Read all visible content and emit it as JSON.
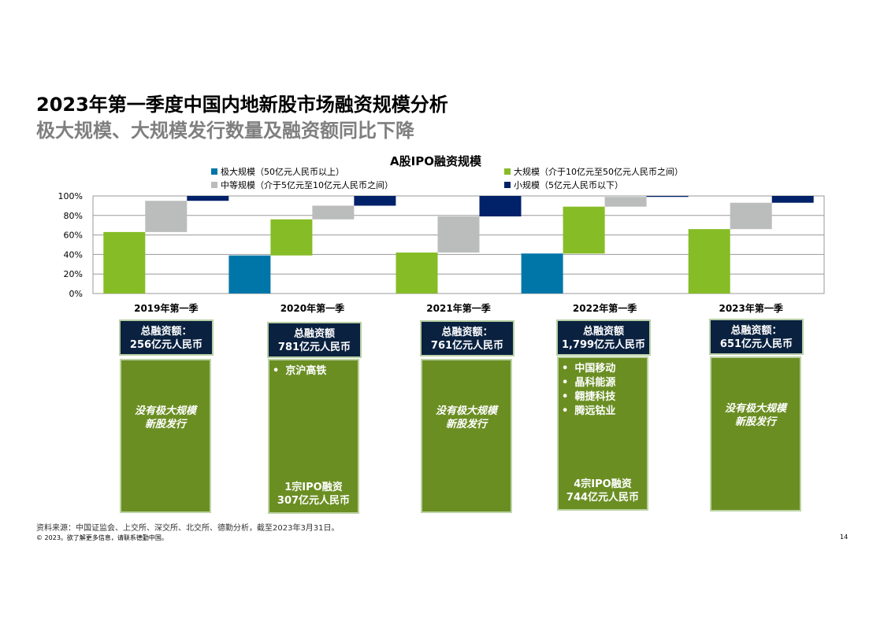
{
  "title": "2023年第一季度中国内地新股市场融资规模分析",
  "subtitle": "极大规模、大规模发行数量及融资额同比下降",
  "chart_data": {
    "type": "bar",
    "title": "A股IPO融资规模",
    "categories": [
      "2019年第一季",
      "2020年第一季",
      "2021年第一季",
      "2022年第一季",
      "2023年第一季"
    ],
    "series": [
      {
        "name": "极大规模（50亿元人民币以上）",
        "values": [
          0,
          39,
          0,
          41,
          0
        ]
      },
      {
        "name": "大规模（介于10亿元至50亿元人民币之间）",
        "values": [
          63,
          37,
          42,
          48,
          66
        ]
      },
      {
        "name": "中等规模（介于5亿元至10亿元人民币之间）",
        "values": [
          32,
          14,
          37,
          10,
          27
        ]
      },
      {
        "name": "小规模（5亿元人民币以下）",
        "values": [
          5,
          10,
          21,
          1,
          7
        ]
      }
    ],
    "colors": [
      "#0076a8",
      "#86bc25",
      "#bbbcbc",
      "#012169"
    ],
    "yticks": [
      "100%",
      "80%",
      "60%",
      "40%",
      "20%",
      "0%"
    ],
    "ylim": [
      0,
      100
    ],
    "grid": true,
    "legend_position": "top"
  },
  "panels": [
    {
      "total_label": "总融资额：",
      "total_value": "256亿元人民币",
      "message": [
        "没有极大规模",
        "新股发行"
      ]
    },
    {
      "total_label": "总融资额",
      "total_value": "781亿元人民币",
      "items": [
        "京沪高铁"
      ],
      "footer": [
        "1宗IPO融资",
        "307亿元人民币"
      ]
    },
    {
      "total_label": "总融资额：",
      "total_value": "761亿元人民币",
      "message": [
        "没有极大规模",
        "新股发行"
      ]
    },
    {
      "total_label": "总融资额",
      "total_value": "1,799亿元人民币",
      "items": [
        "中国移动",
        "晶科能源",
        "翱捷科技",
        "腾远钴业"
      ],
      "footer": [
        "4宗IPO融资",
        "744亿元人民币"
      ]
    },
    {
      "total_label": "总融资额：",
      "total_value": "651亿元人民币",
      "message": [
        "没有极大规模",
        "新股发行"
      ]
    }
  ],
  "source_note": "资料来源：中国证监会、上交所、深交所、北交所、德勤分析，截至2023年3月31日。",
  "copyright": "© 2023。欲了解更多信息，请联系德勤中国。",
  "page_number": "14"
}
